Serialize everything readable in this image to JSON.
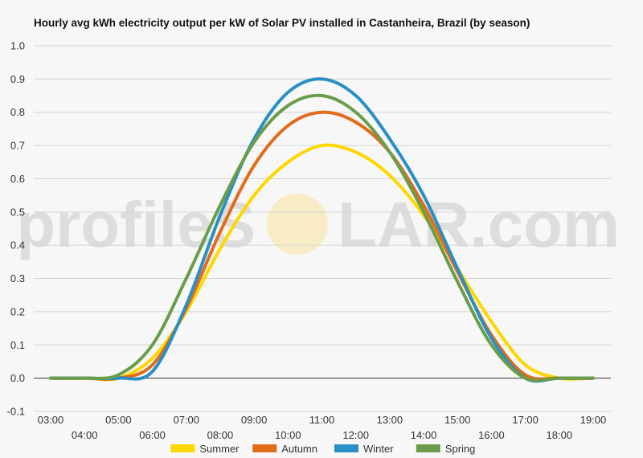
{
  "watermark": {
    "text_left": "profileS",
    "text_right": "LAR.com",
    "sun_color": "#f8e7b0"
  },
  "chart_data": {
    "type": "line",
    "title": "Hourly avg kWh electricity output per kW of Solar PV installed in Castanheira, Brazil (by season)",
    "xlabel": "",
    "ylabel": "",
    "x": [
      "03:00",
      "04:00",
      "05:00",
      "06:00",
      "07:00",
      "08:00",
      "09:00",
      "10:00",
      "11:00",
      "12:00",
      "13:00",
      "14:00",
      "15:00",
      "16:00",
      "17:00",
      "18:00",
      "19:00"
    ],
    "ylim": [
      -0.1,
      1.0
    ],
    "yticks": [
      "-0.1",
      "0.0",
      "0.1",
      "0.2",
      "0.3",
      "0.4",
      "0.5",
      "0.6",
      "0.7",
      "0.8",
      "0.9",
      "1.0"
    ],
    "grid": true,
    "legend_position": "bottom",
    "series": [
      {
        "name": "Summer",
        "color": "#ffd700",
        "values": [
          0,
          0,
          0,
          0.06,
          0.2,
          0.39,
          0.55,
          0.65,
          0.7,
          0.68,
          0.61,
          0.49,
          0.33,
          0.17,
          0.04,
          0,
          0
        ]
      },
      {
        "name": "Autumn",
        "color": "#e06c1c",
        "values": [
          0,
          0,
          0,
          0.04,
          0.21,
          0.44,
          0.64,
          0.76,
          0.8,
          0.77,
          0.68,
          0.52,
          0.32,
          0.13,
          0.01,
          0,
          0
        ]
      },
      {
        "name": "Winter",
        "color": "#2a8fc4",
        "values": [
          0,
          0,
          0,
          0.02,
          0.22,
          0.49,
          0.72,
          0.86,
          0.9,
          0.85,
          0.72,
          0.55,
          0.33,
          0.12,
          0,
          0,
          0
        ]
      },
      {
        "name": "Spring",
        "color": "#6b9c4a",
        "values": [
          0,
          0,
          0.01,
          0.1,
          0.3,
          0.52,
          0.71,
          0.82,
          0.85,
          0.8,
          0.68,
          0.5,
          0.29,
          0.1,
          0,
          0,
          0
        ]
      }
    ]
  }
}
